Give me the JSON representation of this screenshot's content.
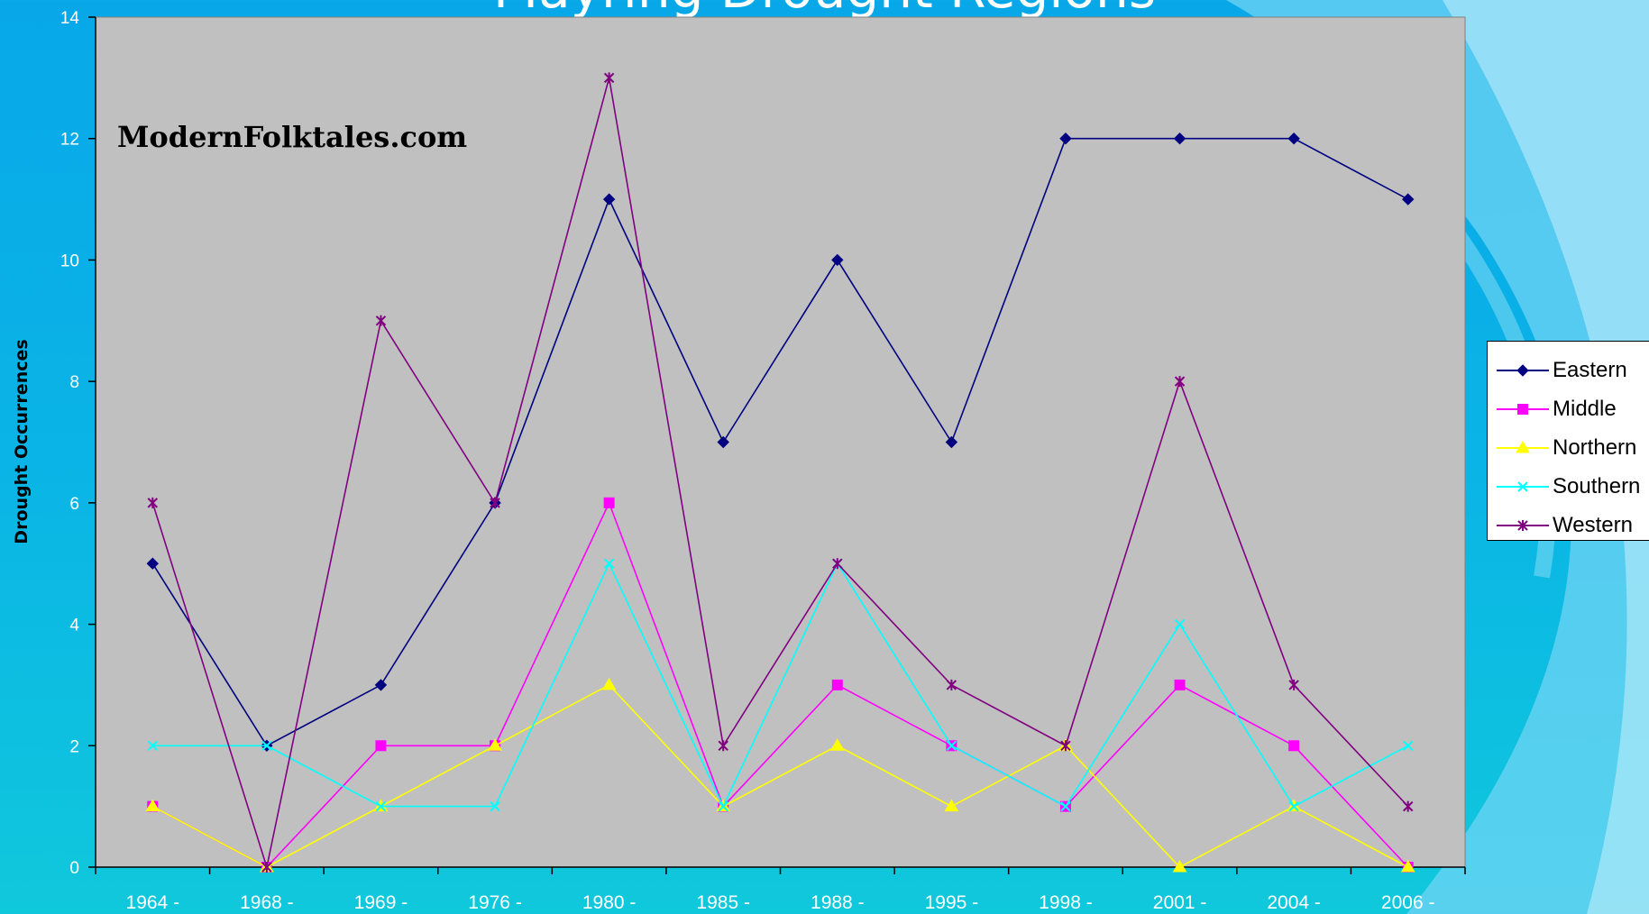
{
  "slide": {
    "title": "Mayring Drought Regions"
  },
  "watermark": "ModernFolktales.com",
  "chart_data": {
    "type": "line",
    "title": "",
    "xlabel": "",
    "ylabel": "Drought Occurrences",
    "categories": [
      "1964 -",
      "1968 -",
      "1969 -",
      "1976 -",
      "1980 -",
      "1985 -",
      "1988 -",
      "1995 -",
      "1998 -",
      "2001 -",
      "2004 -",
      "2006 -"
    ],
    "ylim": [
      0,
      14
    ],
    "yticks": [
      0,
      2,
      4,
      6,
      8,
      10,
      12,
      14
    ],
    "grid": false,
    "legend_position": "right",
    "plot_background": "#c0c0c0",
    "series": [
      {
        "name": "Eastern",
        "color": "#000080",
        "marker": "diamond",
        "values": [
          5,
          2,
          3,
          6,
          11,
          7,
          10,
          7,
          12,
          12,
          12,
          11
        ]
      },
      {
        "name": "Middle",
        "color": "#ff00ff",
        "marker": "square",
        "values": [
          1,
          0,
          2,
          2,
          6,
          1,
          3,
          2,
          1,
          3,
          2,
          0
        ]
      },
      {
        "name": "Northern",
        "color": "#ffff00",
        "marker": "triangle",
        "values": [
          1,
          0,
          1,
          2,
          3,
          1,
          2,
          1,
          2,
          0,
          1,
          0
        ]
      },
      {
        "name": "Southern",
        "color": "#00ffff",
        "marker": "x",
        "values": [
          2,
          2,
          1,
          1,
          5,
          1,
          5,
          2,
          1,
          4,
          1,
          2
        ]
      },
      {
        "name": "Western",
        "color": "#800080",
        "marker": "star",
        "values": [
          6,
          0,
          9,
          6,
          13,
          2,
          5,
          3,
          2,
          8,
          3,
          1
        ]
      }
    ]
  }
}
